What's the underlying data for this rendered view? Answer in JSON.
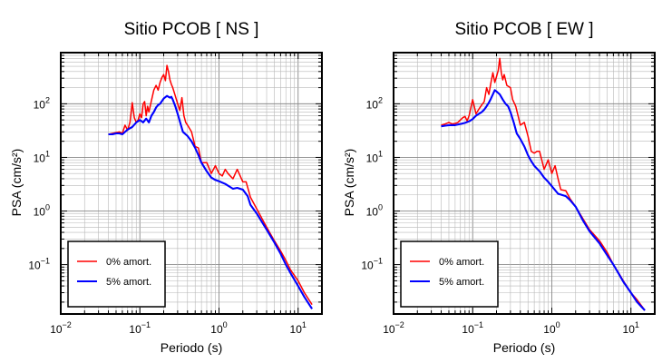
{
  "chart_data": [
    {
      "type": "line",
      "title": "Sitio PCOB [ NS ]",
      "xlabel": "Periodo (s)",
      "ylabel": "PSA (cm/s²)",
      "xscale": "log",
      "yscale": "log",
      "xlim": [
        0.01,
        20
      ],
      "ylim": [
        0.012,
        900
      ],
      "grid": true,
      "legend_position": "bottom-left",
      "xticks": [
        {
          "value": 0.01,
          "base": "10",
          "exp": "−2"
        },
        {
          "value": 0.1,
          "base": "10",
          "exp": "−1"
        },
        {
          "value": 1,
          "base": "10",
          "exp": "0"
        },
        {
          "value": 10,
          "base": "10",
          "exp": "1"
        }
      ],
      "yticks": [
        {
          "value": 0.1,
          "base": "10",
          "exp": "−1"
        },
        {
          "value": 1,
          "base": "10",
          "exp": "0"
        },
        {
          "value": 10,
          "base": "10",
          "exp": "1"
        },
        {
          "value": 100,
          "base": "10",
          "exp": "2"
        }
      ],
      "series": [
        {
          "name": "0% amort.",
          "color": "#ff0000",
          "x": [
            0.04,
            0.045,
            0.05,
            0.055,
            0.06,
            0.065,
            0.07,
            0.075,
            0.08,
            0.085,
            0.09,
            0.095,
            0.1,
            0.105,
            0.11,
            0.115,
            0.12,
            0.125,
            0.13,
            0.14,
            0.15,
            0.16,
            0.17,
            0.18,
            0.19,
            0.2,
            0.21,
            0.22,
            0.23,
            0.24,
            0.25,
            0.26,
            0.28,
            0.3,
            0.32,
            0.34,
            0.36,
            0.38,
            0.4,
            0.45,
            0.5,
            0.55,
            0.6,
            0.7,
            0.8,
            0.9,
            1.0,
            1.1,
            1.2,
            1.3,
            1.5,
            1.7,
            2.0,
            2.2,
            2.5,
            3,
            4,
            5,
            6,
            7,
            8,
            10,
            12,
            15
          ],
          "y": [
            27,
            28,
            29,
            30,
            28,
            40,
            32,
            45,
            105,
            55,
            45,
            50,
            65,
            55,
            100,
            110,
            60,
            90,
            70,
            115,
            180,
            220,
            180,
            250,
            310,
            350,
            270,
            520,
            400,
            280,
            230,
            200,
            140,
            100,
            75,
            130,
            60,
            45,
            40,
            30,
            16,
            15,
            8,
            8,
            5,
            7,
            5,
            4.5,
            6,
            5,
            4,
            6,
            3.5,
            3.5,
            1.8,
            1.1,
            0.5,
            0.28,
            0.18,
            0.12,
            0.08,
            0.05,
            0.03,
            0.018
          ]
        },
        {
          "name": "5% amort.",
          "color": "#0000ff",
          "x": [
            0.04,
            0.045,
            0.05,
            0.055,
            0.06,
            0.07,
            0.08,
            0.09,
            0.1,
            0.11,
            0.12,
            0.13,
            0.14,
            0.15,
            0.16,
            0.17,
            0.18,
            0.2,
            0.22,
            0.24,
            0.25,
            0.26,
            0.28,
            0.3,
            0.35,
            0.4,
            0.45,
            0.5,
            0.55,
            0.6,
            0.7,
            0.8,
            0.9,
            1.0,
            1.2,
            1.5,
            1.7,
            2.0,
            2.3,
            2.5,
            3,
            4,
            5,
            6,
            7,
            8,
            10,
            12,
            15
          ],
          "y": [
            27,
            27,
            28,
            28,
            27,
            33,
            37,
            45,
            50,
            45,
            53,
            45,
            60,
            70,
            85,
            95,
            100,
            125,
            140,
            130,
            135,
            120,
            90,
            65,
            30,
            25,
            20,
            15,
            11,
            8,
            5.5,
            4.2,
            3.8,
            3.6,
            3.2,
            2.6,
            2.7,
            2.5,
            1.9,
            1.3,
            0.9,
            0.45,
            0.26,
            0.16,
            0.1,
            0.07,
            0.04,
            0.025,
            0.015
          ]
        }
      ]
    },
    {
      "type": "line",
      "title": "Sitio PCOB [ EW ]",
      "xlabel": "Periodo (s)",
      "ylabel": "PSA (cm/s²)",
      "xscale": "log",
      "yscale": "log",
      "xlim": [
        0.01,
        20
      ],
      "ylim": [
        0.012,
        900
      ],
      "grid": true,
      "legend_position": "bottom-left",
      "xticks": [
        {
          "value": 0.01,
          "base": "10",
          "exp": "−2"
        },
        {
          "value": 0.1,
          "base": "10",
          "exp": "−1"
        },
        {
          "value": 1,
          "base": "10",
          "exp": "0"
        },
        {
          "value": 10,
          "base": "10",
          "exp": "1"
        }
      ],
      "yticks": [
        {
          "value": 0.1,
          "base": "10",
          "exp": "−1"
        },
        {
          "value": 1,
          "base": "10",
          "exp": "0"
        },
        {
          "value": 10,
          "base": "10",
          "exp": "1"
        },
        {
          "value": 100,
          "base": "10",
          "exp": "2"
        }
      ],
      "series": [
        {
          "name": "0% amort.",
          "color": "#ff0000",
          "x": [
            0.04,
            0.045,
            0.05,
            0.055,
            0.06,
            0.065,
            0.07,
            0.075,
            0.08,
            0.085,
            0.09,
            0.1,
            0.11,
            0.12,
            0.13,
            0.14,
            0.15,
            0.16,
            0.17,
            0.18,
            0.19,
            0.2,
            0.21,
            0.22,
            0.23,
            0.24,
            0.25,
            0.27,
            0.3,
            0.32,
            0.35,
            0.38,
            0.4,
            0.45,
            0.5,
            0.55,
            0.6,
            0.65,
            0.7,
            0.8,
            0.9,
            1.0,
            1.1,
            1.2,
            1.3,
            1.5,
            1.7,
            2.0,
            2.5,
            3,
            4,
            5,
            6,
            7,
            8,
            10,
            12,
            15
          ],
          "y": [
            40,
            42,
            45,
            42,
            43,
            45,
            50,
            55,
            58,
            48,
            60,
            120,
            65,
            80,
            95,
            110,
            200,
            150,
            250,
            380,
            250,
            320,
            420,
            700,
            380,
            280,
            350,
            220,
            200,
            120,
            90,
            55,
            40,
            45,
            25,
            13,
            12,
            13,
            13,
            6,
            9,
            5,
            7,
            4,
            2.5,
            2.4,
            1.7,
            1.2,
            0.7,
            0.45,
            0.28,
            0.17,
            0.1,
            0.07,
            0.05,
            0.03,
            0.022,
            0.014
          ]
        },
        {
          "name": "5% amort.",
          "color": "#0000ff",
          "x": [
            0.04,
            0.045,
            0.05,
            0.06,
            0.07,
            0.08,
            0.09,
            0.1,
            0.11,
            0.12,
            0.13,
            0.14,
            0.15,
            0.16,
            0.17,
            0.18,
            0.19,
            0.2,
            0.22,
            0.24,
            0.26,
            0.28,
            0.3,
            0.33,
            0.36,
            0.4,
            0.45,
            0.5,
            0.55,
            0.6,
            0.7,
            0.8,
            0.9,
            1.0,
            1.2,
            1.5,
            1.7,
            2.0,
            2.5,
            3,
            4,
            5,
            6,
            7,
            8,
            10,
            12,
            15
          ],
          "y": [
            38,
            39,
            40,
            40,
            42,
            44,
            47,
            52,
            60,
            65,
            70,
            78,
            90,
            105,
            125,
            150,
            180,
            170,
            150,
            120,
            100,
            90,
            70,
            45,
            28,
            22,
            16,
            11,
            8.5,
            7,
            5.5,
            4.2,
            3.5,
            2.9,
            2.1,
            1.9,
            1.6,
            1.2,
            0.65,
            0.42,
            0.25,
            0.15,
            0.1,
            0.068,
            0.048,
            0.03,
            0.02,
            0.014
          ]
        }
      ]
    }
  ]
}
